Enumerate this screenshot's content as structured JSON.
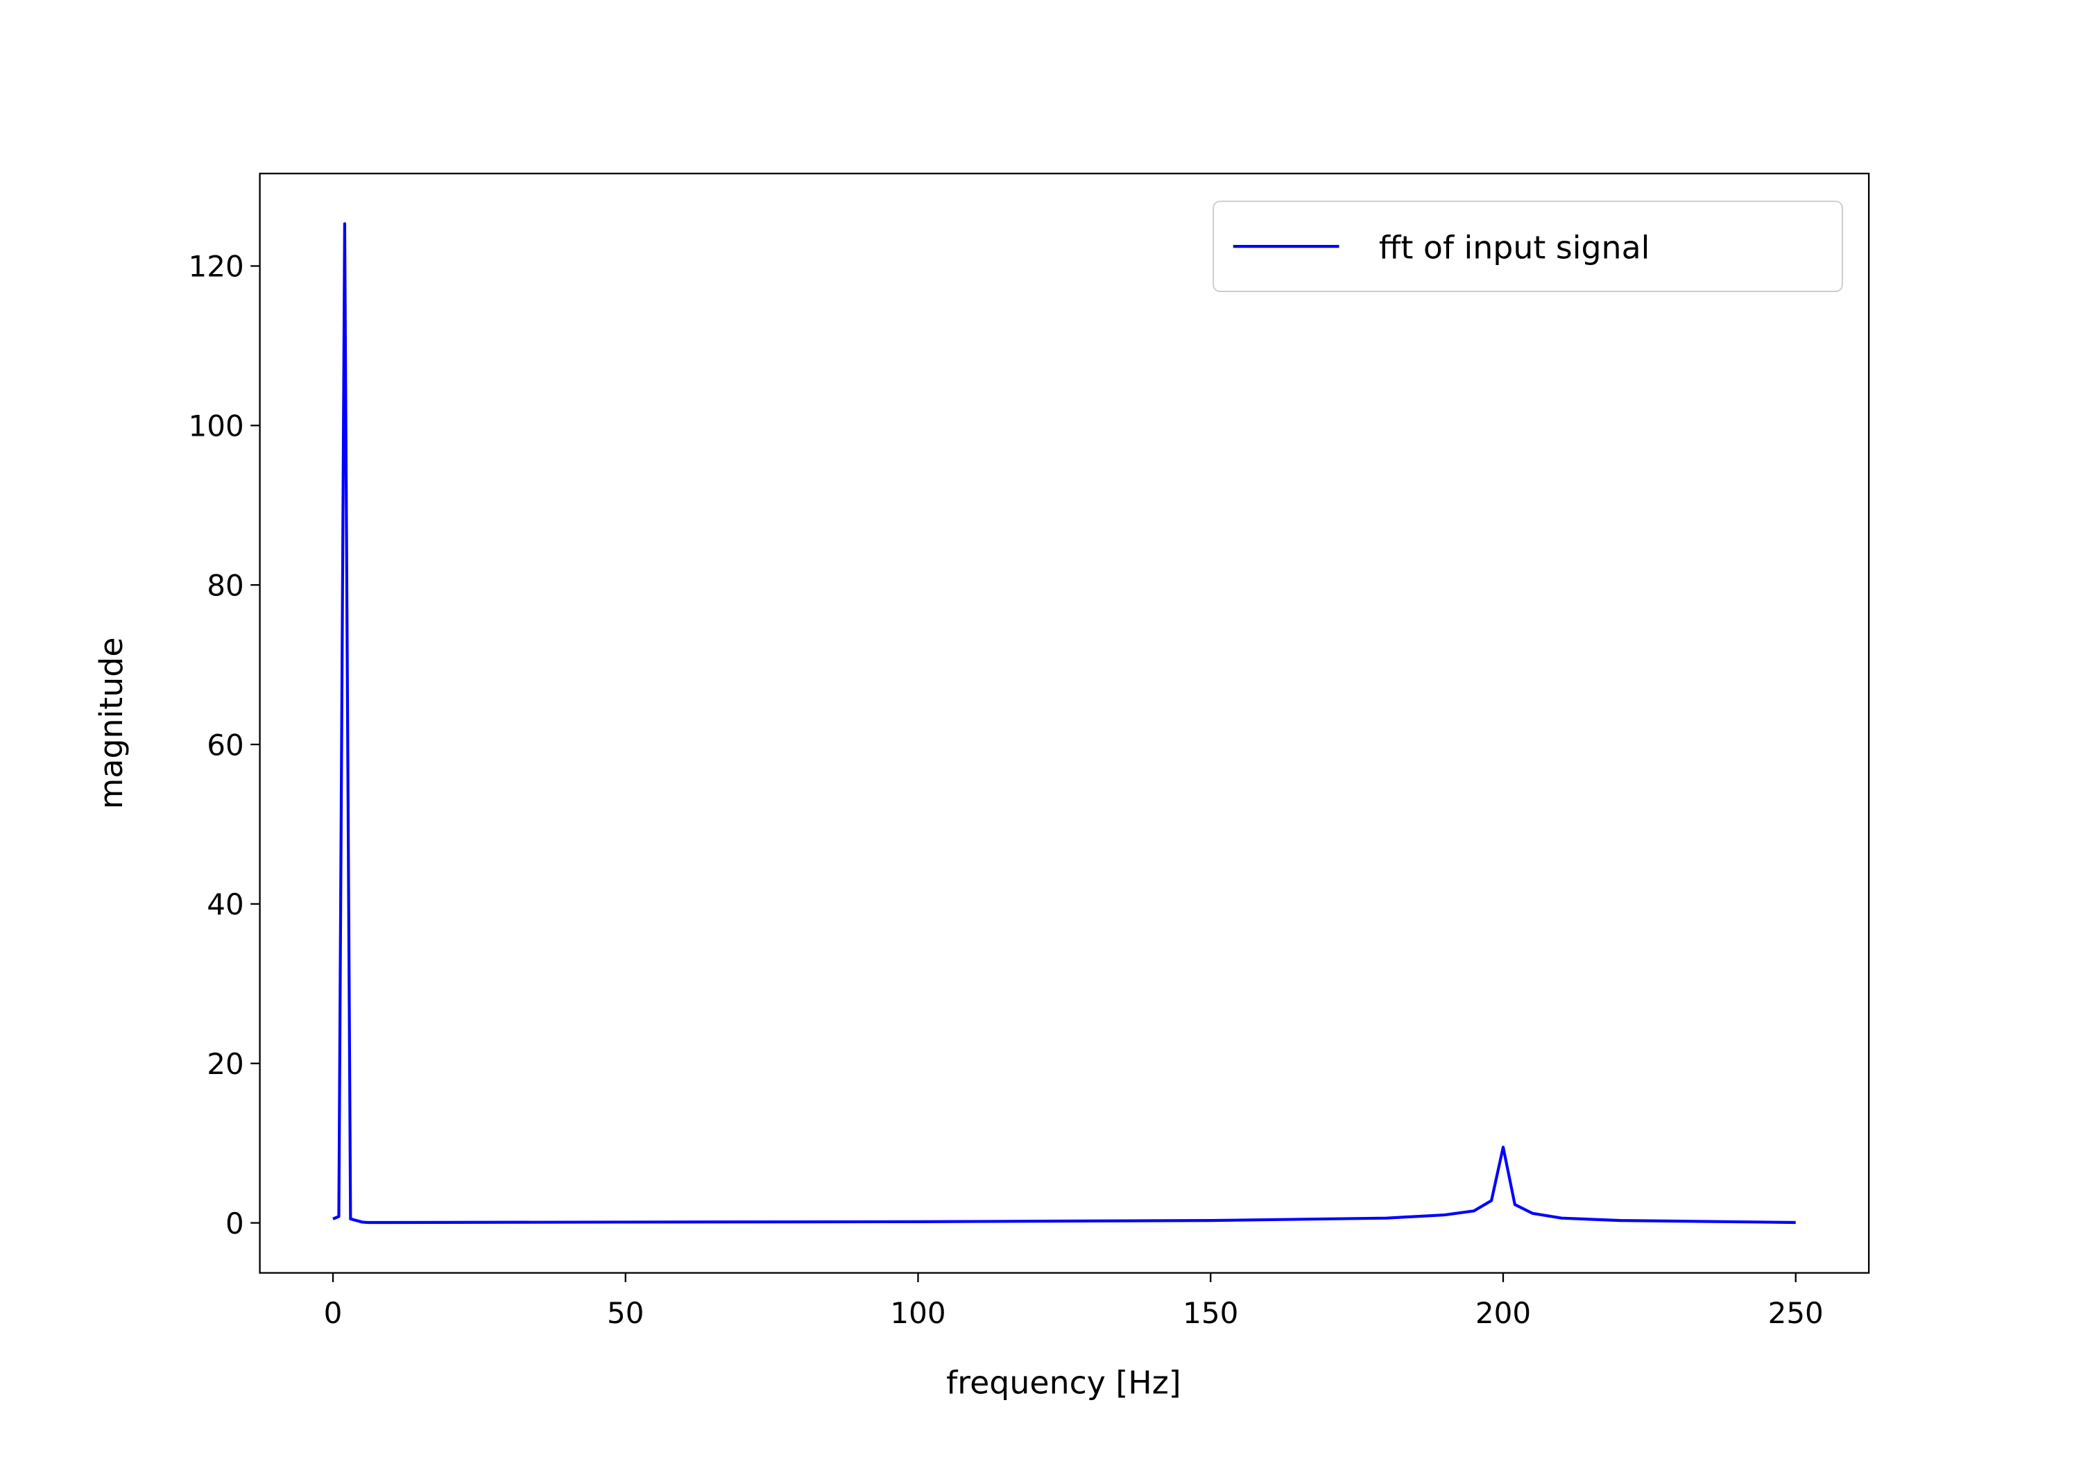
{
  "chart_data": {
    "type": "line",
    "xlabel": "frequency [Hz]",
    "ylabel": "magnitude",
    "x": [
      0,
      1,
      2,
      3,
      5,
      6,
      10,
      50,
      100,
      150,
      180,
      190,
      195,
      198,
      200,
      202,
      205,
      210,
      220,
      250
    ],
    "series": [
      {
        "name": "fft of input signal",
        "color": "#0000ff",
        "values": [
          0.5,
          0.8,
          125.3,
          0.5,
          0.1,
          0.05,
          0.05,
          0.1,
          0.15,
          0.3,
          0.6,
          1.0,
          1.5,
          2.8,
          9.5,
          2.3,
          1.2,
          0.6,
          0.3,
          0.05
        ]
      }
    ],
    "xlim": [
      -12.5,
      262.5
    ],
    "ylim": [
      -6.27,
      131.6
    ],
    "xticks": [
      0,
      50,
      100,
      150,
      200,
      250
    ],
    "yticks": [
      0,
      20,
      40,
      60,
      80,
      100,
      120
    ],
    "legend": "upper right",
    "grid": false
  }
}
